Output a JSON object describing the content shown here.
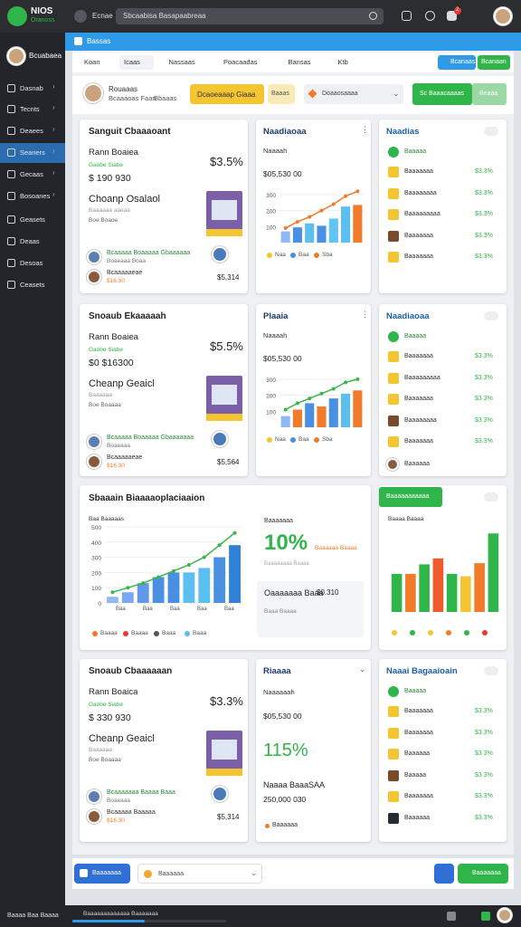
{
  "topbar": {
    "brand": "NIOS",
    "brand_sub": "Oranoss",
    "menu": "Ecnae",
    "search": "Sbcaabisa Basapaabreaa",
    "badge": "2"
  },
  "sidebar": {
    "user": "Bcuabaea",
    "active": 3,
    "items": [
      "Dasnab",
      "Tecnts",
      "Deaees",
      "Seaners",
      "Gecaas",
      "Bosoanes",
      "Geasets",
      "Deaas",
      "Desoas",
      "Ceasets"
    ]
  },
  "breadcrumb": "Bassas",
  "tabs": [
    "Koan",
    "Icaas",
    "Nassaas",
    "Poacaadas",
    "Bansas",
    "Ktb"
  ],
  "tab_buttons": [
    "Bcanaas",
    "Bcanaan"
  ],
  "profile": {
    "name": "Rouaaas",
    "detail": "Bcaaaoas Faan",
    "tag": "Bbaaas",
    "primary": "Dcaoeaaap Giaaa",
    "secondary": "Baaas",
    "select": "Doaaosaaaa",
    "action": "Sc Baaacaaaas",
    "action2": "Beaaa"
  },
  "row1": {
    "stat": {
      "title": "Sanguit Cbaaaoant",
      "label": "Rann Boaiea",
      "note": "Gaobe Siabe",
      "percent": "$3.5%",
      "amount": "$ 190 930",
      "product": "Choanp Osalaol",
      "desc": "Baaaaaa aaeaa",
      "meta": "Boe Boaoe",
      "people": [
        {
          "name": "Bcaaaaa Boaaaaa Gbaaaaaa",
          "detail": "Boaeaaa Boaa"
        },
        {
          "name": "Bcaaaaaeae",
          "detail": "$16.30"
        }
      ],
      "total": "$5,314"
    },
    "chart": {
      "title": "Naadiaoaa",
      "sub": "Naaaah",
      "amount": "$05,530 00",
      "yticks": [
        100,
        200,
        300
      ],
      "ylim": [
        0,
        350
      ],
      "bars": [
        70,
        95,
        120,
        105,
        150,
        225,
        235
      ],
      "bar_colors": [
        "#8fb8f5",
        "#4a90e2",
        "#5bc0f0",
        "#4a90e2",
        "#62c3f5",
        "#5bc0f0",
        "#f07b2a"
      ],
      "line": [
        90,
        130,
        160,
        200,
        240,
        290,
        320
      ],
      "line_color": "#f07b2a",
      "legend": [
        "Naa",
        "Baa",
        "Sba"
      ]
    },
    "list": {
      "title": "Naadias",
      "head": "Baaaaa",
      "items": [
        {
          "label": "Baaaaaaa",
          "value": "$3.3%"
        },
        {
          "label": "Baaaaaaaa",
          "value": "$3.3%"
        },
        {
          "label": "Baaaaaaaaa",
          "value": "$3.3%"
        },
        {
          "label": "Baaaaaaa",
          "value": "$3.3%"
        },
        {
          "label": "Baaaaaaa",
          "value": "$3.3%"
        }
      ]
    }
  },
  "row2": {
    "stat": {
      "title": "Snoaub Ekaaaaah",
      "label": "Rann Boaiea",
      "note": "Gaobe Siabe",
      "percent": "$5.5%",
      "amount": "$0 $16300",
      "product": "Cheanp Geaicl",
      "desc": "Baaaaaa",
      "meta": "Boe Boaaaa",
      "people": [
        {
          "name": "Bcaaaaa Boaaaaa Gbaaaaaaa",
          "detail": "Boaeaaa"
        },
        {
          "name": "Bcaaaaaeae",
          "detail": "$16.30"
        }
      ],
      "total": "$5,564"
    },
    "chart": {
      "title": "Plaaia",
      "sub": "Naaaah",
      "amount": "$05,530 00",
      "yticks": [
        100,
        200,
        300
      ],
      "ylim": [
        0,
        350
      ],
      "bars": [
        70,
        110,
        150,
        130,
        180,
        210,
        230
      ],
      "bar_colors": [
        "#8fb8f5",
        "#f07b2a",
        "#4a90e2",
        "#f07b2a",
        "#4a90e2",
        "#5bc0f0",
        "#f07b2a"
      ],
      "line": [
        110,
        150,
        180,
        210,
        240,
        280,
        300
      ],
      "line_color": "#3cb54a",
      "legend": [
        "Naa",
        "Baa",
        "Sba"
      ]
    },
    "list": {
      "title": "Naadiaoaa",
      "head": "Baaaaa",
      "items": [
        {
          "label": "Baaaaaaa",
          "value": "$3.3%"
        },
        {
          "label": "Baaaaaaaaa",
          "value": "$3.3%"
        },
        {
          "label": "Baaaaaaa",
          "value": "$3.3%"
        },
        {
          "label": "Baaaaaaaa",
          "value": "$3.3%"
        },
        {
          "label": "Baaaaaaa",
          "value": "$3.3%"
        }
      ],
      "foot": "Baaaaaa"
    }
  },
  "row3": {
    "trend": {
      "title": "Sbaaain Biaaaaoplaciaaion",
      "label": "Baa Baaaaas",
      "yticks": [
        0,
        100,
        200,
        300,
        400,
        500
      ],
      "ylim": [
        0,
        500
      ],
      "bars": [
        40,
        70,
        130,
        170,
        200,
        200,
        230,
        300,
        380
      ],
      "bar_colors": [
        "#8fb8f5",
        "#7aa8f0",
        "#6098ea",
        "#4a90e2",
        "#4a90e2",
        "#5bc0f0",
        "#5bc0f0",
        "#4a90e2",
        "#2f80d8"
      ],
      "line": [
        70,
        100,
        130,
        170,
        210,
        250,
        300,
        380,
        460
      ],
      "line_color": "#3cb54a",
      "xlabels": [
        "Baa",
        "Baa",
        "Baa",
        "Baa",
        "Baa"
      ],
      "legend": [
        "Baaaa",
        "Baaaa",
        "Baaa",
        "Baaa"
      ],
      "side": {
        "label": "Baaaaaaa",
        "percent": "10%",
        "percent_note": "Baaaaaa Baaaa",
        "note": "Baaaaaaaa Baaaa",
        "title": "Oaaaaaaa Baaa",
        "value": "$0.310",
        "detail": "Baaa Baaaa"
      }
    },
    "bars": {
      "button": "Baaaaaaaaaaa",
      "label": "Baaaa Baaaa",
      "ylim": [
        0,
        350
      ],
      "bars": [
        160,
        160,
        200,
        225,
        160,
        150,
        205,
        330
      ],
      "bar_colors": [
        "#2fb54a",
        "#f07b2a",
        "#2fb54a",
        "#f05a2a",
        "#2fb54a",
        "#f5c431",
        "#f07b2a",
        "#2fb54a"
      ]
    }
  },
  "row4": {
    "stat": {
      "title": "Snoaub Cbaaaaaan",
      "label": "Rann Boaica",
      "note": "Gaobe Siabe",
      "percent": "$3.3%",
      "amount": "$ 330 930",
      "product": "Cheanp Geaicl",
      "desc": "Baaaaaa",
      "meta": "Boe Boaaaa",
      "people": [
        {
          "name": "Bcaaaaaaa Baaaa Baaa",
          "detail": "Boaeaaa"
        },
        {
          "name": "Bcaaaaa Baaaaa",
          "detail": "$16.30"
        }
      ],
      "total": "$5,314"
    },
    "chart": {
      "title": "Riaaaa",
      "sub": "Naaaaaah",
      "amount": "$05,530 00",
      "percent": "115%",
      "label": "Naaaa BaaaSAA",
      "value": "250,000 030",
      "foot": "Baaaaaa"
    },
    "list": {
      "title": "Naaai Bagaaioain",
      "head": "Baaaaa",
      "items": [
        {
          "label": "Baaaaaaa",
          "value": "$3.3%"
        },
        {
          "label": "Baaaaaaa",
          "value": "$3.3%"
        },
        {
          "label": "Baaaaaa",
          "value": "$3.3%"
        },
        {
          "label": "Baaaaa",
          "value": "$3.3%"
        },
        {
          "label": "Baaaaaaa",
          "value": "$3.3%"
        },
        {
          "label": "Baaaaaa",
          "value": "$3.3%"
        }
      ]
    }
  },
  "bottom": {
    "button": "Baaaaaaa",
    "select": "Baaaaaa",
    "action": "Baaaaaaa"
  },
  "footer": {
    "status": "Baaaa Baa Baaaa",
    "progress": "Baaaaaaaaaaaaa Baaaaaaa"
  }
}
